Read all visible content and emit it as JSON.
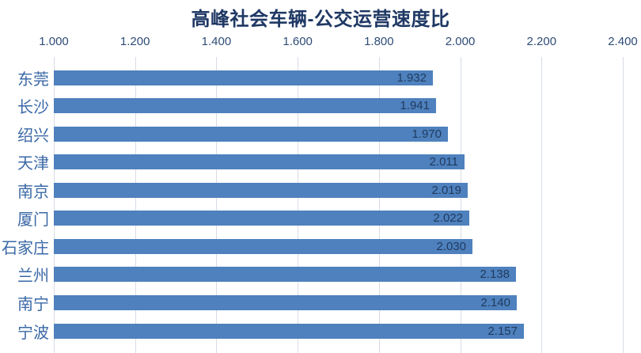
{
  "chart_data": {
    "type": "bar",
    "orientation": "horizontal",
    "title": "高峰社会车辆-公交运营速度比",
    "categories": [
      "东莞",
      "长沙",
      "绍兴",
      "天津",
      "南京",
      "厦门",
      "石家庄",
      "兰州",
      "南宁",
      "宁波"
    ],
    "values": [
      1.932,
      1.941,
      1.97,
      2.011,
      2.019,
      2.022,
      2.03,
      2.138,
      2.14,
      2.157
    ],
    "value_labels": [
      "1.932",
      "1.941",
      "1.970",
      "2.011",
      "2.019",
      "2.022",
      "2.030",
      "2.138",
      "2.140",
      "2.157"
    ],
    "x_axis": {
      "position": "top",
      "min": 1.0,
      "max": 2.4,
      "tick_values": [
        1.0,
        1.2,
        1.4,
        1.6,
        1.8,
        2.0,
        2.2,
        2.4
      ],
      "tick_labels": [
        "1.000",
        "1.200",
        "1.400",
        "1.600",
        "1.800",
        "2.000",
        "2.200",
        "2.400"
      ]
    },
    "grid": true,
    "legend": "none",
    "colors": {
      "bar": "#4E81BD",
      "title": "#1F3864",
      "axis_tick_label": "#2E4C77",
      "category_label": "#3A68A6",
      "value_label": "#1F3A5F",
      "gridline": "#D6DCE5",
      "background": "#FFFFFF"
    }
  }
}
